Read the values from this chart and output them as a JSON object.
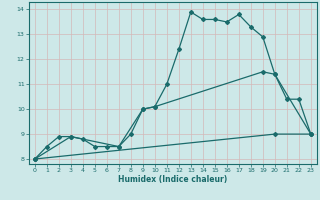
{
  "xlabel": "Humidex (Indice chaleur)",
  "background_color": "#cde8e8",
  "grid_color": "#b8d8d8",
  "line_color": "#1a6b6b",
  "xlim": [
    -0.5,
    23.5
  ],
  "ylim": [
    7.8,
    14.3
  ],
  "xticks": [
    0,
    1,
    2,
    3,
    4,
    5,
    6,
    7,
    8,
    9,
    10,
    11,
    12,
    13,
    14,
    15,
    16,
    17,
    18,
    19,
    20,
    21,
    22,
    23
  ],
  "yticks": [
    8,
    9,
    10,
    11,
    12,
    13,
    14
  ],
  "line1_x": [
    0,
    1,
    2,
    3,
    4,
    5,
    6,
    7,
    8,
    9,
    10,
    11,
    12,
    13,
    14,
    15,
    16,
    17,
    18,
    19,
    20,
    21,
    22,
    23
  ],
  "line1_y": [
    8.0,
    8.5,
    8.9,
    8.9,
    8.8,
    8.5,
    8.5,
    8.5,
    9.0,
    10.0,
    10.1,
    11.0,
    12.4,
    13.9,
    13.6,
    13.6,
    13.5,
    13.8,
    13.3,
    12.9,
    11.4,
    10.4,
    10.4,
    9.0
  ],
  "line2_x": [
    0,
    20,
    23
  ],
  "line2_y": [
    8.0,
    9.0,
    9.0
  ],
  "line3_x": [
    0,
    3,
    7,
    9,
    10,
    19,
    20,
    23
  ],
  "line3_y": [
    8.0,
    8.9,
    8.5,
    10.0,
    10.1,
    11.5,
    11.4,
    9.0
  ],
  "marker_size": 2.0,
  "linewidth": 0.9
}
